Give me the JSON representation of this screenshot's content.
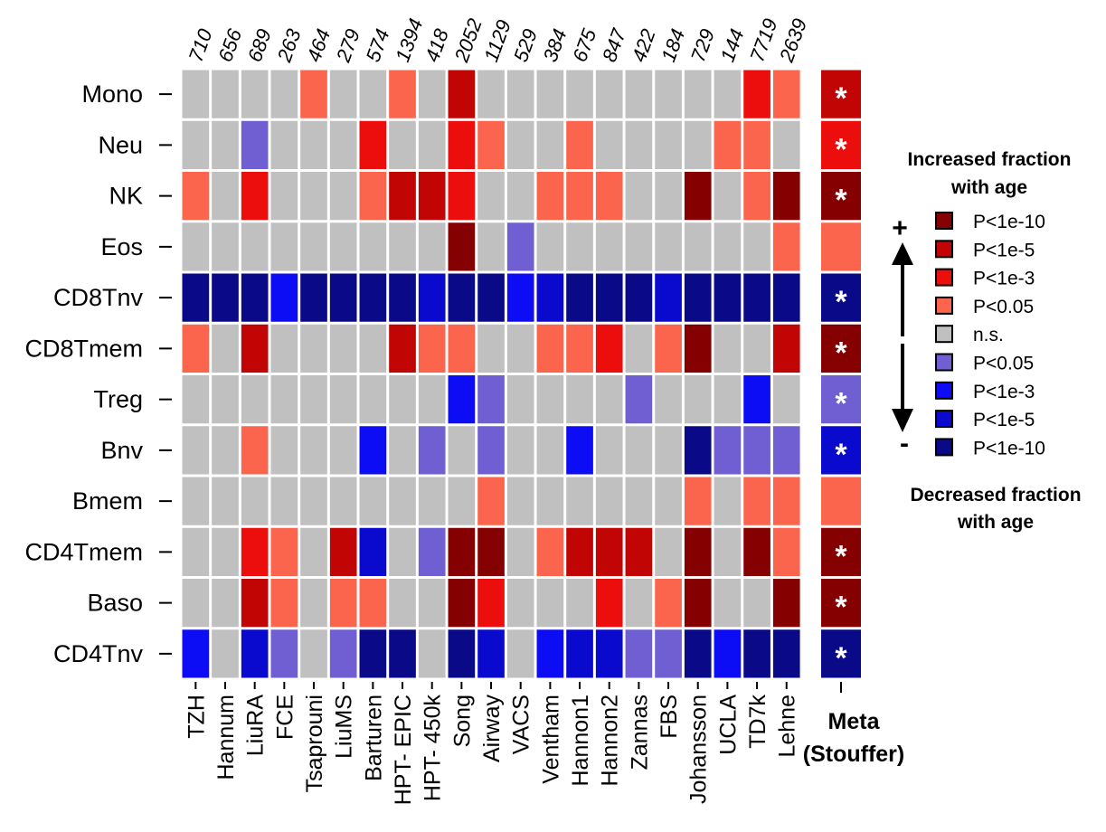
{
  "chart_data": {
    "type": "heatmap",
    "title": "",
    "columns": [
      "TZH",
      "Hannum",
      "LiuRA",
      "FCE",
      "Tsaprouni",
      "LiuMS",
      "Barturen",
      "HPT- EPIC",
      "HPT- 450k",
      "Song",
      "Airway",
      "VACS",
      "Ventham",
      "Hannon1",
      "Hannon2",
      "Zannas",
      "FBS",
      "Johansson",
      "UCLA",
      "TD7k",
      "Lehne"
    ],
    "sample_sizes": [
      "710",
      "656",
      "689",
      "263",
      "464",
      "279",
      "574",
      "1394",
      "418",
      "2052",
      "1129",
      "529",
      "384",
      "675",
      "847",
      "422",
      "184",
      "729",
      "144",
      "7719",
      "2639"
    ],
    "rows": [
      "Mono",
      "Neu",
      "NK",
      "Eos",
      "CD8Tnv",
      "CD8Tmem",
      "Treg",
      "Bnv",
      "Bmem",
      "CD4Tmem",
      "Baso",
      "CD4Tnv"
    ],
    "level_scale": {
      "4": "Increased P<1e-10",
      "3": "Increased P<1e-5",
      "2": "Increased P<1e-3",
      "1": "Increased P<0.05",
      "0": "n.s.",
      "-1": "Decreased P<0.05",
      "-2": "Decreased P<1e-3",
      "-3": "Decreased P<1e-5",
      "-4": "Decreased P<1e-10"
    },
    "colors": {
      "4": "#850000",
      "3": "#C10505",
      "2": "#EC0D0D",
      "1": "#FB654D",
      "0": "#C0C0C0",
      "-1": "#6F5FD2",
      "-2": "#0D0DF5",
      "-3": "#0A0ACF",
      "-4": "#0A0A88"
    },
    "values": [
      [
        0,
        0,
        0,
        0,
        1,
        0,
        0,
        1,
        0,
        3,
        0,
        0,
        0,
        0,
        0,
        0,
        0,
        0,
        0,
        2,
        1
      ],
      [
        0,
        0,
        -1,
        0,
        0,
        0,
        2,
        0,
        0,
        2,
        1,
        0,
        0,
        1,
        0,
        0,
        0,
        0,
        1,
        1,
        0
      ],
      [
        1,
        0,
        2,
        0,
        0,
        0,
        1,
        3,
        3,
        2,
        0,
        0,
        1,
        1,
        1,
        0,
        0,
        4,
        0,
        1,
        4
      ],
      [
        0,
        0,
        0,
        0,
        0,
        0,
        0,
        0,
        0,
        4,
        0,
        -1,
        0,
        0,
        0,
        0,
        0,
        0,
        0,
        0,
        1
      ],
      [
        -4,
        -4,
        -4,
        -2,
        -4,
        -4,
        -4,
        -4,
        -3,
        -4,
        -4,
        -2,
        -3,
        -4,
        -4,
        -4,
        -3,
        -4,
        -4,
        -4,
        -4
      ],
      [
        1,
        0,
        3,
        0,
        0,
        0,
        0,
        3,
        1,
        1,
        0,
        0,
        1,
        1,
        2,
        0,
        1,
        4,
        0,
        0,
        3
      ],
      [
        0,
        0,
        0,
        0,
        0,
        0,
        0,
        0,
        0,
        -2,
        -1,
        0,
        0,
        0,
        0,
        -1,
        0,
        0,
        0,
        -2,
        0
      ],
      [
        0,
        0,
        1,
        0,
        0,
        0,
        -2,
        0,
        -1,
        0,
        -1,
        0,
        0,
        -2,
        0,
        0,
        0,
        -4,
        -1,
        -1,
        -1
      ],
      [
        0,
        0,
        0,
        0,
        0,
        0,
        0,
        0,
        0,
        0,
        1,
        0,
        0,
        0,
        0,
        0,
        0,
        1,
        0,
        1,
        1
      ],
      [
        0,
        0,
        2,
        1,
        0,
        3,
        -3,
        0,
        -1,
        4,
        4,
        0,
        1,
        3,
        3,
        3,
        0,
        4,
        0,
        4,
        1
      ],
      [
        0,
        0,
        3,
        1,
        0,
        1,
        1,
        0,
        0,
        4,
        2,
        0,
        0,
        0,
        2,
        0,
        1,
        4,
        0,
        0,
        4
      ],
      [
        -2,
        0,
        -3,
        -1,
        0,
        -1,
        -4,
        -4,
        0,
        -4,
        -3,
        0,
        -2,
        -3,
        -3,
        -1,
        -1,
        -4,
        -2,
        -4,
        -4
      ]
    ],
    "meta": {
      "title_line1": "Meta",
      "title_line2": "(Stouffer)",
      "values": [
        3,
        2,
        4,
        1,
        -4,
        4,
        -1,
        -3,
        1,
        4,
        4,
        -4
      ],
      "significant": [
        true,
        true,
        true,
        false,
        true,
        true,
        true,
        true,
        false,
        true,
        true,
        true
      ],
      "marker": "*"
    },
    "legend": {
      "top_label_line1": "Increased fraction",
      "top_label_line2": "with age",
      "bottom_label_line1": "Decreased fraction",
      "bottom_label_line2": "with age",
      "plus": "+",
      "minus": "-",
      "items": [
        {
          "label": "P<1e-10",
          "level": 4
        },
        {
          "label": "P<1e-5",
          "level": 3
        },
        {
          "label": "P<1e-3",
          "level": 2
        },
        {
          "label": "P<0.05",
          "level": 1
        },
        {
          "label": "n.s.",
          "level": 0
        },
        {
          "label": "P<0.05",
          "level": -1
        },
        {
          "label": "P<1e-3",
          "level": -2
        },
        {
          "label": "P<1e-5",
          "level": -3
        },
        {
          "label": "P<1e-10",
          "level": -4
        }
      ]
    }
  }
}
